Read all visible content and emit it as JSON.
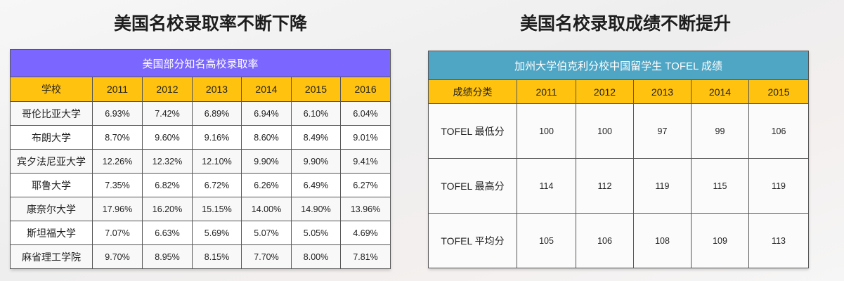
{
  "left": {
    "heading": "美国名校录取率不断下降",
    "caption": "美国部分知名高校录取率",
    "columns": [
      "学校",
      "2011",
      "2012",
      "2013",
      "2014",
      "2015",
      "2016"
    ],
    "rows": [
      {
        "school": "哥伦比亚大学",
        "values": [
          "6.93%",
          "7.42%",
          "6.89%",
          "6.94%",
          "6.10%",
          "6.04%"
        ]
      },
      {
        "school": "布朗大学",
        "values": [
          "8.70%",
          "9.60%",
          "9.16%",
          "8.60%",
          "8.49%",
          "9.01%"
        ]
      },
      {
        "school": "宾夕法尼亚大学",
        "values": [
          "12.26%",
          "12.32%",
          "12.10%",
          "9.90%",
          "9.90%",
          "9.41%"
        ]
      },
      {
        "school": "耶鲁大学",
        "values": [
          "7.35%",
          "6.82%",
          "6.72%",
          "6.26%",
          "6.49%",
          "6.27%"
        ]
      },
      {
        "school": "康奈尔大学",
        "values": [
          "17.96%",
          "16.20%",
          "15.15%",
          "14.00%",
          "14.90%",
          "13.96%"
        ]
      },
      {
        "school": "斯坦福大学",
        "values": [
          "7.07%",
          "6.63%",
          "5.69%",
          "5.07%",
          "5.05%",
          "4.69%"
        ]
      },
      {
        "school": "麻省理工学院",
        "values": [
          "9.70%",
          "8.95%",
          "8.15%",
          "7.70%",
          "8.00%",
          "7.81%"
        ]
      }
    ]
  },
  "right": {
    "heading": "美国名校录取成绩不断提升",
    "caption": "加州大学伯克利分校中国留学生 TOFEL 成绩",
    "columns": [
      "成绩分类",
      "2011",
      "2012",
      "2013",
      "2014",
      "2015"
    ],
    "rows": [
      {
        "category": "TOFEL 最低分",
        "values": [
          "100",
          "100",
          "97",
          "99",
          "106"
        ]
      },
      {
        "category": "TOFEL 最高分",
        "values": [
          "114",
          "112",
          "119",
          "115",
          "119"
        ]
      },
      {
        "category": "TOFEL 平均分",
        "values": [
          "105",
          "106",
          "108",
          "109",
          "113"
        ]
      }
    ]
  },
  "colors": {
    "left_caption_bg": "#7b66ff",
    "right_caption_bg": "#4fa5c4",
    "header_row_bg": "#ffc20e"
  }
}
